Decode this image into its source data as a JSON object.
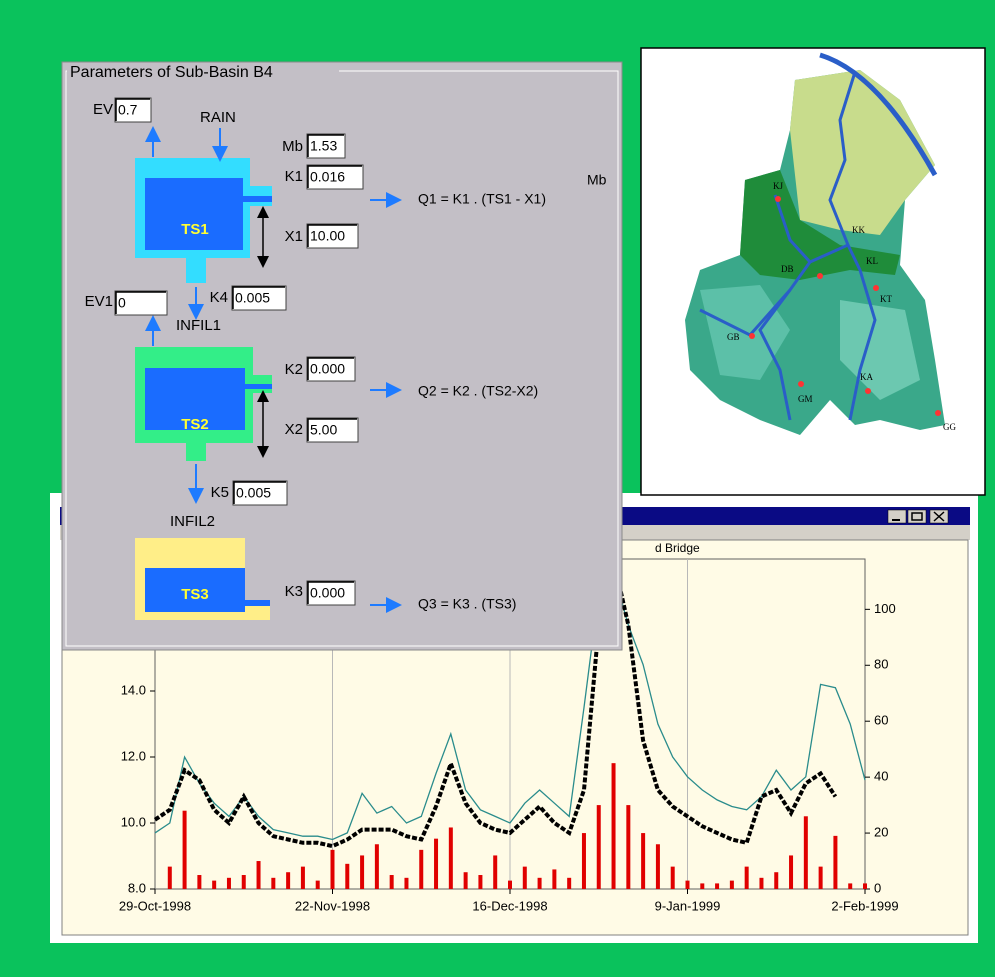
{
  "parameters_panel": {
    "title": "Parameters of Sub-Basin B4",
    "fields": [
      {
        "label": "EV",
        "value": "0.7"
      },
      {
        "label": "Mb",
        "value": "1.53"
      },
      {
        "label": "K1",
        "value": "0.016"
      },
      {
        "label": "X1",
        "value": "10.00"
      },
      {
        "label": "EV1",
        "value": "0"
      },
      {
        "label": "K4",
        "value": "0.005"
      },
      {
        "label": "K2",
        "value": "0.000"
      },
      {
        "label": "X2",
        "value": "5.00"
      },
      {
        "label": "K5",
        "value": "0.005"
      },
      {
        "label": "K3",
        "value": "0.000"
      }
    ],
    "tanks": [
      "TS1",
      "TS2",
      "TS3"
    ],
    "flows": [
      "RAIN",
      "INFIL1",
      "INFIL2"
    ],
    "equations": [
      {
        "text": "Q1 = K1 . (TS1 - X1)",
        "exponent": "Mb"
      },
      {
        "text": "Q2 = K2 . (TS2-X2)"
      },
      {
        "text": "Q3 = K3 . (TS3)"
      }
    ]
  },
  "map": {
    "stations": [
      "KJ",
      "KK",
      "KL",
      "DB",
      "KT",
      "GB",
      "GM",
      "KA",
      "GG"
    ]
  },
  "chart_data": {
    "type": "line",
    "subtitle": "d Bridge",
    "x": [
      "1998-10-29",
      "1998-10-31",
      "1998-11-02",
      "1998-11-04",
      "1998-11-06",
      "1998-11-08",
      "1998-11-10",
      "1998-11-12",
      "1998-11-14",
      "1998-11-16",
      "1998-11-18",
      "1998-11-20",
      "1998-11-22",
      "1998-11-24",
      "1998-11-26",
      "1998-11-28",
      "1998-11-30",
      "1998-12-02",
      "1998-12-04",
      "1998-12-06",
      "1998-12-08",
      "1998-12-10",
      "1998-12-12",
      "1998-12-14",
      "1998-12-16",
      "1998-12-18",
      "1998-12-20",
      "1998-12-22",
      "1998-12-24",
      "1998-12-26",
      "1998-12-28",
      "1998-12-30",
      "1999-01-01",
      "1999-01-03",
      "1999-01-05",
      "1999-01-07",
      "1999-01-09",
      "1999-01-11",
      "1999-01-13",
      "1999-01-15",
      "1999-01-17",
      "1999-01-19",
      "1999-01-21",
      "1999-01-23",
      "1999-01-25",
      "1999-01-27",
      "1999-01-29",
      "1999-01-31",
      "1999-02-02"
    ],
    "xlim": [
      "1998-10-29",
      "1999-02-02"
    ],
    "xticks": [
      {
        "value": "1998-10-29",
        "label": "29-Oct-1998"
      },
      {
        "value": "1998-11-22",
        "label": "22-Nov-1998"
      },
      {
        "value": "1998-12-16",
        "label": "16-Dec-1998"
      },
      {
        "value": "1999-01-09",
        "label": "9-Jan-1999"
      },
      {
        "value": "1999-02-02",
        "label": "2-Feb-1999"
      }
    ],
    "ylim": [
      8,
      18
    ],
    "yticks": [
      {
        "value": 8,
        "label": "8.0"
      },
      {
        "value": 10,
        "label": "10.0"
      },
      {
        "value": 12,
        "label": "12.0"
      },
      {
        "value": 14,
        "label": "14.0"
      }
    ],
    "y2lim": [
      0,
      118
    ],
    "y2ticks": [
      0,
      20,
      40,
      60,
      80,
      100
    ],
    "grid": true,
    "series": [
      {
        "type": "bar",
        "axis": "y2",
        "color": "#e00000",
        "values": [
          0,
          8,
          28,
          5,
          3,
          4,
          5,
          10,
          4,
          6,
          8,
          3,
          14,
          9,
          12,
          16,
          5,
          4,
          14,
          18,
          22,
          6,
          5,
          12,
          3,
          8,
          4,
          7,
          4,
          20,
          30,
          45,
          30,
          20,
          16,
          8,
          3,
          2,
          2,
          3,
          8,
          4,
          6,
          12,
          26,
          8,
          19,
          2,
          2
        ]
      },
      {
        "type": "line",
        "line_style": "solid",
        "color": "#2a8c8c",
        "values": [
          9.7,
          10.0,
          12.0,
          11.2,
          10.6,
          10.2,
          10.8,
          10.2,
          9.8,
          9.7,
          9.6,
          9.6,
          9.5,
          9.7,
          10.9,
          10.3,
          10.5,
          10.0,
          10.2,
          11.5,
          12.7,
          11.0,
          10.4,
          10.2,
          10.0,
          10.6,
          11.0,
          10.6,
          10.2,
          13.5,
          17.0,
          17.6,
          16.0,
          14.8,
          13.0,
          12.0,
          11.4,
          11.0,
          10.7,
          10.5,
          10.4,
          10.8,
          11.6,
          11.0,
          11.4,
          14.2,
          14.1,
          13.0,
          11.3
        ]
      },
      {
        "type": "line",
        "line_style": "dashed",
        "color": "#000000",
        "values": [
          10.1,
          10.4,
          11.6,
          11.3,
          10.4,
          10.0,
          10.8,
          10.0,
          9.6,
          9.5,
          9.4,
          9.4,
          9.3,
          9.5,
          9.8,
          9.8,
          9.8,
          9.6,
          9.5,
          10.5,
          11.8,
          10.6,
          10.0,
          9.8,
          9.7,
          10.1,
          10.5,
          10.0,
          9.7,
          11.0,
          16.0,
          18.0,
          16.0,
          12.5,
          11.0,
          10.5,
          10.2,
          9.9,
          9.7,
          9.5,
          9.4,
          10.8,
          11.0,
          10.3,
          11.2,
          11.5,
          10.8,
          null,
          null
        ]
      }
    ]
  }
}
